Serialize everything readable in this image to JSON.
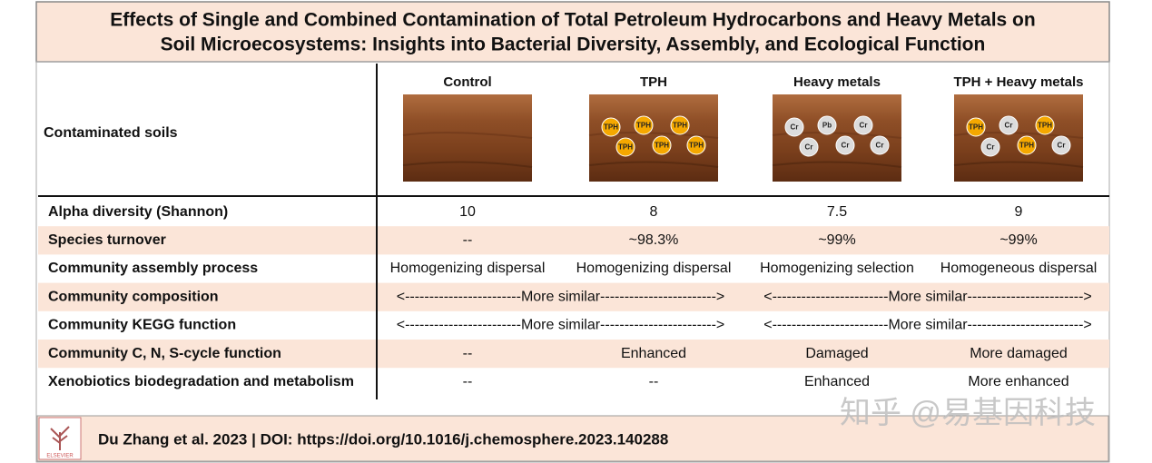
{
  "title": {
    "lines": [
      "Effects of Single and Combined Contamination of Total Petroleum Hydrocarbons and Heavy Metals on",
      "Soil Microecosystems: Insights into Bacterial Diversity, Assembly, and Ecological Function"
    ]
  },
  "header": {
    "row_label": "Contaminated soils",
    "columns": [
      "Control",
      "TPH",
      "Heavy metals",
      "TPH + Heavy metals"
    ]
  },
  "soils": [
    {
      "particles": []
    },
    {
      "particles": [
        "TPH",
        "TPH",
        "TPH",
        "TPH",
        "TPH",
        "TPH"
      ]
    },
    {
      "particles": [
        "Cr",
        "Pb",
        "Cr",
        "Cr",
        "Cr",
        "Cr"
      ]
    },
    {
      "particles": [
        "TPH",
        "Cr",
        "TPH",
        "Cr",
        "TPH",
        "Cr"
      ]
    }
  ],
  "rows": [
    {
      "label": "Alpha diversity (Shannon)",
      "cells": [
        "10",
        "8",
        "7.5",
        "9"
      ]
    },
    {
      "label": "Species turnover",
      "cells": [
        "--",
        "~98.3%",
        "~99%",
        "~99%"
      ]
    },
    {
      "label": "Community assembly process",
      "cells": [
        "Homogenizing dispersal",
        "Homogenizing dispersal",
        "Homogenizing selection",
        "Homogeneous dispersal"
      ]
    },
    {
      "label": "Community composition",
      "cells": [
        "<------------------------More similar------------------------>",
        "<------------------------More similar------------------------>"
      ],
      "spans": [
        2,
        2
      ]
    },
    {
      "label": "Community KEGG function",
      "cells": [
        "<------------------------More similar------------------------>",
        "<------------------------More similar------------------------>"
      ],
      "spans": [
        2,
        2
      ]
    },
    {
      "label": "Community C, N, S-cycle function",
      "cells": [
        "--",
        "Enhanced",
        "Damaged",
        "More damaged"
      ]
    },
    {
      "label": "Xenobiotics biodegradation and metabolism",
      "cells": [
        "--",
        "--",
        "Enhanced",
        "More enhanced"
      ]
    }
  ],
  "footer": {
    "citation": "Du Zhang et al. 2023 | DOI: https://doi.org/10.1016/j.chemosphere.2023.140288",
    "logo": "ELSEVIER"
  },
  "watermark": "知乎 @易基因科技"
}
